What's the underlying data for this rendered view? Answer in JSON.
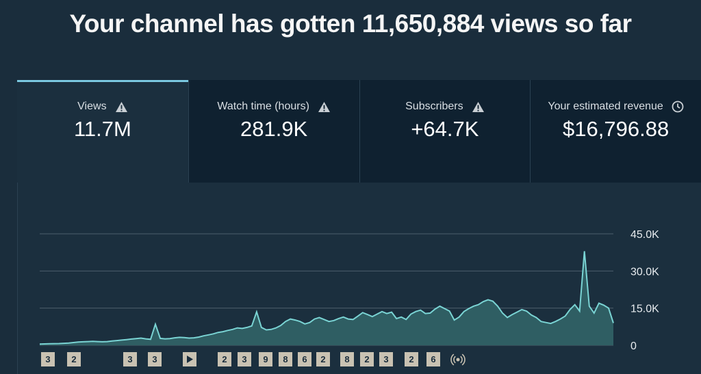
{
  "headline": "Your channel has gotten 11,650,884 views so far",
  "tabs": [
    {
      "label": "Views",
      "value": "11.7M",
      "icon": "warning-icon",
      "active": true
    },
    {
      "label": "Watch time (hours)",
      "value": "281.9K",
      "icon": "warning-icon",
      "active": false
    },
    {
      "label": "Subscribers",
      "value": "+64.7K",
      "icon": "warning-icon",
      "active": false
    },
    {
      "label": "Your estimated revenue",
      "value": "$16,796.88",
      "icon": "clock-icon",
      "active": false
    }
  ],
  "colors": {
    "background": "#1a2d3c",
    "line": "#7ad4d4",
    "fill": "#2f5e63",
    "active_tab_accent": "#7ac8e0"
  },
  "chart_data": {
    "type": "area",
    "ylim": [
      0,
      45000
    ],
    "y_ticks": [
      "45.0K",
      "30.0K",
      "15.0K",
      "0"
    ],
    "y_tick_values": [
      45000,
      30000,
      15000,
      0
    ],
    "grid": true,
    "markers": [
      "3",
      "2",
      "3",
      "3",
      "play",
      "2",
      "3",
      "9",
      "8",
      "6",
      "2",
      "8",
      "2",
      "3",
      "2",
      "6",
      "live"
    ],
    "series": [
      {
        "values": [
          500,
          550,
          600,
          650,
          700,
          800,
          900,
          1100,
          1300,
          1400,
          1500,
          1600,
          1500,
          1400,
          1500,
          1700,
          1900,
          2100,
          2300,
          2500,
          2700,
          2900,
          2600,
          2400,
          8500,
          2800,
          2600,
          2700,
          3000,
          3200,
          3100,
          2900,
          3000,
          3300,
          3800,
          4200,
          4600,
          5200,
          5500,
          6000,
          6400,
          7000,
          6800,
          7200,
          7800,
          13500,
          7200,
          6200,
          6400,
          7000,
          8000,
          9600,
          10600,
          10200,
          9600,
          8600,
          9200,
          10600,
          11200,
          10400,
          9600,
          10000,
          10800,
          11400,
          10600,
          10400,
          11800,
          13200,
          12400,
          11600,
          12600,
          13600,
          12800,
          13400,
          10800,
          11400,
          10400,
          12600,
          13600,
          14200,
          12800,
          13000,
          14600,
          15800,
          14800,
          13800,
          10200,
          11400,
          13600,
          14800,
          15800,
          16400,
          17600,
          18400,
          17800,
          15800,
          13000,
          11200,
          12400,
          13400,
          14400,
          13800,
          12200,
          11200,
          9600,
          9200,
          8800,
          9600,
          10600,
          11800,
          14400,
          16400,
          13800,
          38000,
          15800,
          13000,
          17000,
          16200,
          15000,
          9000
        ]
      }
    ]
  }
}
